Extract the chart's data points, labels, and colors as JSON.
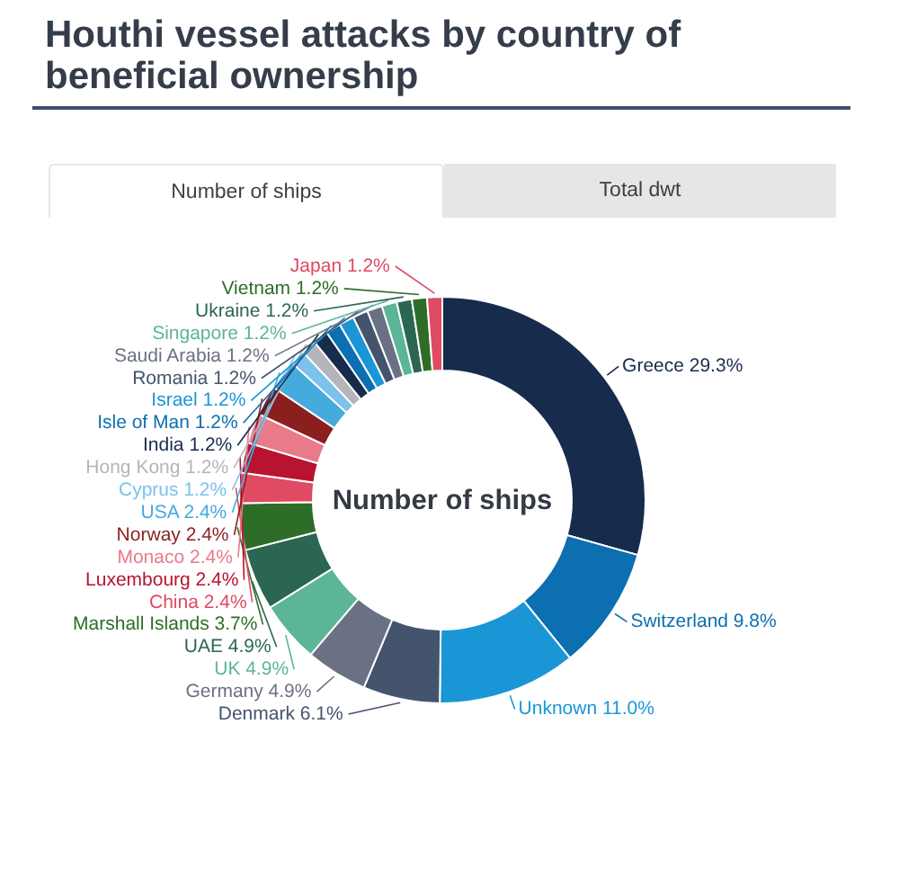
{
  "chart_data": {
    "type": "donut",
    "title": "Houthi vessel attacks by country of beneficial ownership",
    "categories": [
      "Greece",
      "Switzerland",
      "Unknown",
      "Denmark",
      "Germany",
      "UK",
      "UAE",
      "Marshall Islands",
      "China",
      "Luxembourg",
      "Monaco",
      "Norway",
      "USA",
      "Cyprus",
      "Hong Kong",
      "India",
      "Isle of Man",
      "Israel",
      "Romania",
      "Saudi Arabia",
      "Singapore",
      "Ukraine",
      "Vietnam",
      "Japan"
    ],
    "values": [
      29.3,
      9.8,
      11.0,
      6.1,
      4.9,
      4.9,
      4.9,
      3.7,
      2.4,
      2.4,
      2.4,
      2.4,
      2.4,
      1.2,
      1.2,
      1.2,
      1.2,
      1.2,
      1.2,
      1.2,
      1.2,
      1.2,
      1.2,
      1.2
    ],
    "value_labels": [
      "29.3%",
      "9.8%",
      "11.0%",
      "6.1%",
      "4.9%",
      "4.9%",
      "4.9%",
      "3.7%",
      "2.4%",
      "2.4%",
      "2.4%",
      "2.4%",
      "2.4%",
      "1.2%",
      "1.2%",
      "1.2%",
      "1.2%",
      "1.2%",
      "1.2%",
      "1.2%",
      "1.2%",
      "1.2%",
      "1.2%",
      "1.2%"
    ],
    "colors": [
      "#172b4d",
      "#0b6fb1",
      "#1a96d6",
      "#44546c",
      "#6b7184",
      "#5db598",
      "#2b6653",
      "#2e6d28",
      "#e04a62",
      "#b8132f",
      "#e97a8a",
      "#8b1f1f",
      "#45aadc",
      "#7cc2ea",
      "#b3b5ba",
      "#172b4d",
      "#0b6fb1",
      "#1a96d6",
      "#44546c",
      "#6b7184",
      "#5db598",
      "#2b6653",
      "#2e6d28",
      "#e04a62"
    ],
    "annotations": [
      "Number of ships",
      "Total dwt",
      "Number of ships"
    ],
    "legend": false
  }
}
